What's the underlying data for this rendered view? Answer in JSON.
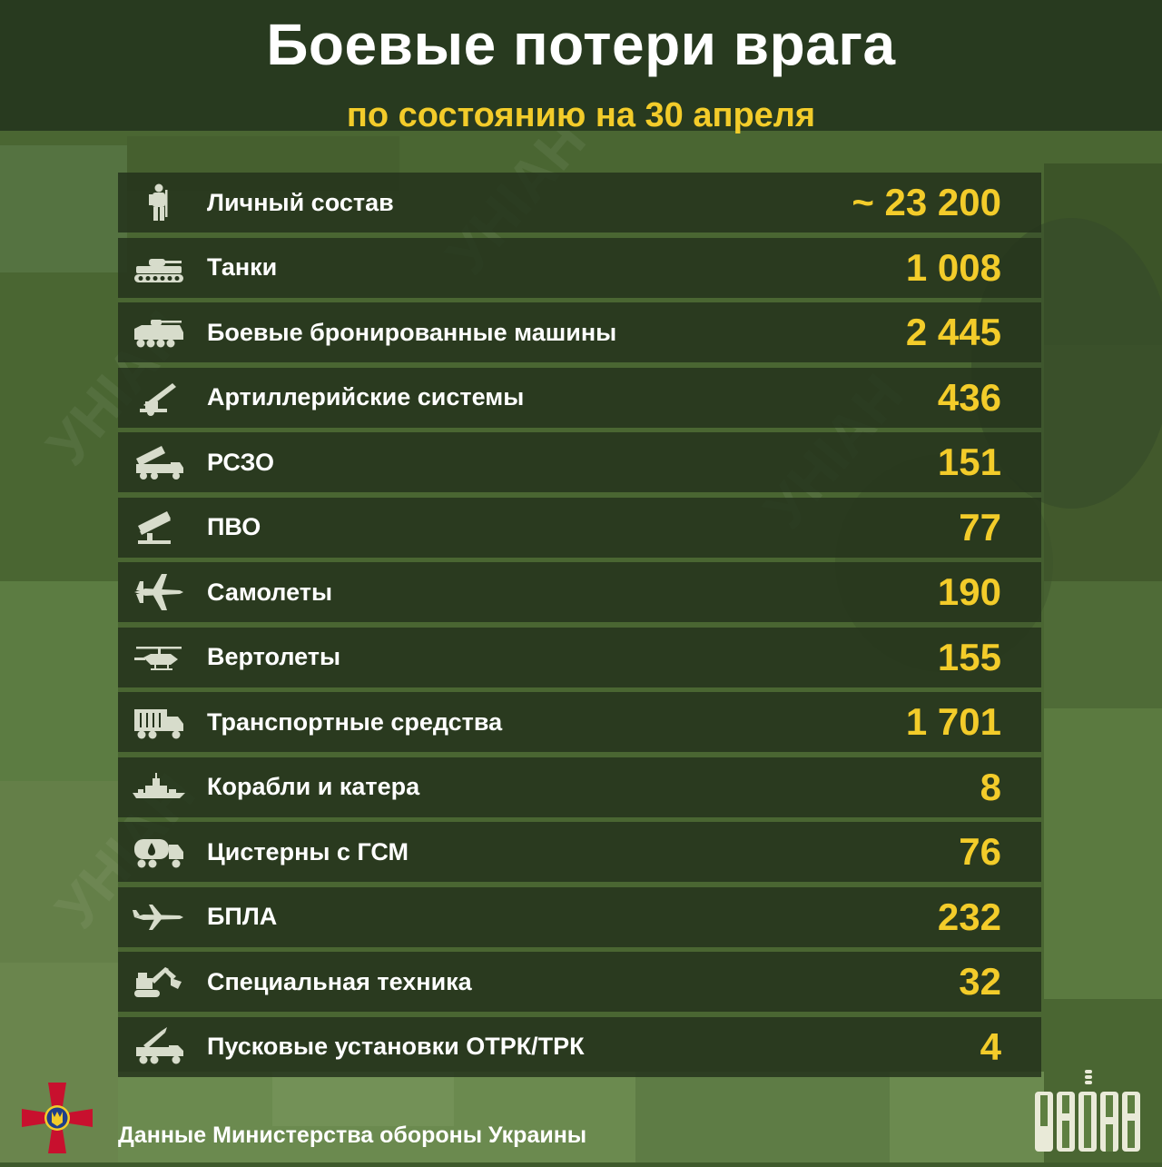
{
  "header": {
    "title": "Боевые потери врага",
    "subtitle": "по состоянию на 30 апреля"
  },
  "rows": [
    {
      "icon": "soldier-icon",
      "label": "Личный состав",
      "value": "~ 23 200"
    },
    {
      "icon": "tank-icon",
      "label": "Танки",
      "value": "1 008"
    },
    {
      "icon": "armored-vehicle-icon",
      "label": "Боевые бронированные машины",
      "value": "2 445"
    },
    {
      "icon": "artillery-icon",
      "label": "Артиллерийские системы",
      "value": "436"
    },
    {
      "icon": "mlrs-icon",
      "label": "РСЗО",
      "value": "151"
    },
    {
      "icon": "air-defense-icon",
      "label": "ПВО",
      "value": "77"
    },
    {
      "icon": "plane-icon",
      "label": "Самолеты",
      "value": "190"
    },
    {
      "icon": "helicopter-icon",
      "label": "Вертолеты",
      "value": "155"
    },
    {
      "icon": "truck-icon",
      "label": "Транспортные средства",
      "value": "1 701"
    },
    {
      "icon": "ship-icon",
      "label": "Корабли и катера",
      "value": "8"
    },
    {
      "icon": "fuel-tank-icon",
      "label": "Цистерны с ГСМ",
      "value": "76"
    },
    {
      "icon": "drone-icon",
      "label": "БПЛА",
      "value": "232"
    },
    {
      "icon": "excavator-icon",
      "label": "Специальная техника",
      "value": "32"
    },
    {
      "icon": "missile-launcher-icon",
      "label": "Пусковые установки ОТРК/ТРК",
      "value": "4"
    }
  ],
  "footer": {
    "source": "Данные Министерства обороны Украины",
    "logo_text": "УНІАН",
    "watermark_text": "УНІАН"
  },
  "colors": {
    "accent": "#f3cc2a",
    "header_bg": "#283a1f",
    "row_bg": "#24321b",
    "icon": "#d7dccb",
    "emblem_cross": "#c8102e",
    "emblem_trident": "#f3cc2a"
  }
}
